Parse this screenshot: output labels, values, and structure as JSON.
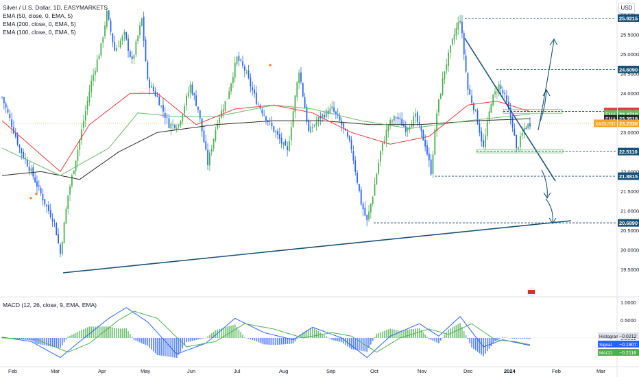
{
  "header": {
    "title": "Silver / U.S. Dollar, 1D, EASYMARKETS",
    "indicators": [
      "EMA (50, close, 0, EMA, 5)",
      "EMA (200, close, 0, EMA, 5)",
      "EMA (100, close, 0, EMA, 5)"
    ],
    "currency": "USD",
    "macd_title": "MACD (12, 26, close, 9, EMA, EMA)"
  },
  "colors": {
    "up": "#4caf50",
    "down": "#2962ff",
    "ema50": "#e53935",
    "ema100": "#66bb6a",
    "ema200": "#2a2a2a",
    "trendline": "#1a5276",
    "current_price": "#f5a623",
    "macd_line": "#2962ff",
    "signal_line": "#4caf50"
  },
  "chart_data": [
    {
      "type": "candlestick",
      "symbol": "XAGUSD",
      "x_ticks": [
        "Feb",
        "Mar",
        "Apr",
        "May",
        "Jun",
        "Jul",
        "Aug",
        "Sep",
        "Oct",
        "Nov",
        "Dec",
        "2024",
        "Feb",
        "Mar"
      ],
      "y_ticks": [
        "26.0000",
        "25.5000",
        "25.0000",
        "24.5000",
        "24.0000",
        "23.5000",
        "23.0000",
        "22.5000",
        "22.0000",
        "21.5000",
        "21.0000",
        "20.5000",
        "20.0000",
        "19.5000"
      ],
      "ylim": [
        19.3,
        26.3
      ],
      "key_path": [
        [
          0,
          23.9
        ],
        [
          5,
          23.2
        ],
        [
          9,
          22.6
        ],
        [
          15,
          22.0
        ],
        [
          22,
          21.2
        ],
        [
          27,
          20.7
        ],
        [
          30,
          19.9
        ],
        [
          34,
          21.4
        ],
        [
          40,
          22.8
        ],
        [
          46,
          24.3
        ],
        [
          51,
          25.2
        ],
        [
          54,
          26.05
        ],
        [
          58,
          25.1
        ],
        [
          63,
          25.5
        ],
        [
          67,
          24.8
        ],
        [
          72,
          25.9
        ],
        [
          75,
          24.3
        ],
        [
          80,
          23.9
        ],
        [
          86,
          23.2
        ],
        [
          91,
          23.2
        ],
        [
          97,
          24.2
        ],
        [
          101,
          23.6
        ],
        [
          106,
          22.2
        ],
        [
          111,
          23.3
        ],
        [
          116,
          23.9
        ],
        [
          121,
          24.9
        ],
        [
          125,
          24.6
        ],
        [
          131,
          23.8
        ],
        [
          137,
          23.3
        ],
        [
          142,
          22.9
        ],
        [
          147,
          22.5
        ],
        [
          153,
          24.6
        ],
        [
          158,
          23.0
        ],
        [
          164,
          23.4
        ],
        [
          170,
          23.6
        ],
        [
          175,
          23.2
        ],
        [
          180,
          22.6
        ],
        [
          185,
          21.2
        ],
        [
          188,
          20.72
        ],
        [
          191,
          21.4
        ],
        [
          195,
          22.5
        ],
        [
          199,
          23.2
        ],
        [
          203,
          23.4
        ],
        [
          208,
          23.1
        ],
        [
          213,
          23.4
        ],
        [
          218,
          22.7
        ],
        [
          221,
          22.0
        ],
        [
          224,
          23.5
        ],
        [
          228,
          24.6
        ],
        [
          233,
          25.5
        ],
        [
          236,
          25.92
        ],
        [
          240,
          24.1
        ],
        [
          244,
          23.5
        ],
        [
          248,
          22.6
        ],
        [
          252,
          23.8
        ],
        [
          256,
          24.2
        ],
        [
          259,
          23.9
        ],
        [
          263,
          23.2
        ],
        [
          265,
          22.55
        ],
        [
          269,
          23.1
        ],
        [
          272,
          23.233
        ]
      ],
      "ema50_path": [
        [
          0,
          23.3
        ],
        [
          30,
          22.0
        ],
        [
          45,
          23.2
        ],
        [
          66,
          24.0
        ],
        [
          80,
          24.0
        ],
        [
          100,
          23.2
        ],
        [
          120,
          23.6
        ],
        [
          140,
          23.7
        ],
        [
          160,
          23.5
        ],
        [
          180,
          23.0
        ],
        [
          200,
          22.7
        ],
        [
          220,
          22.9
        ],
        [
          240,
          23.7
        ],
        [
          255,
          23.8
        ],
        [
          272,
          23.5345
        ]
      ],
      "ema100_path": [
        [
          0,
          22.6
        ],
        [
          30,
          21.9
        ],
        [
          55,
          22.6
        ],
        [
          70,
          23.5
        ],
        [
          90,
          23.4
        ],
        [
          110,
          23.4
        ],
        [
          140,
          23.7
        ],
        [
          160,
          23.6
        ],
        [
          185,
          23.3
        ],
        [
          210,
          23.1
        ],
        [
          240,
          23.3
        ],
        [
          272,
          23.471
        ]
      ],
      "ema200_path": [
        [
          0,
          21.9
        ],
        [
          20,
          22.0
        ],
        [
          40,
          21.8
        ],
        [
          60,
          22.5
        ],
        [
          80,
          23.0
        ],
        [
          110,
          23.2
        ],
        [
          140,
          23.3
        ],
        [
          165,
          23.3
        ],
        [
          190,
          23.2
        ],
        [
          215,
          23.2
        ],
        [
          245,
          23.3
        ],
        [
          272,
          23.3518
        ]
      ],
      "current_price": 23.233,
      "price_labels": [
        {
          "value": 25.9215,
          "text": "25.9215",
          "kind": "level"
        },
        {
          "value": 24.609,
          "text": "24.6090",
          "kind": "level"
        },
        {
          "value": 23.5385,
          "text": "23.5385",
          "kind": "level"
        },
        {
          "value": 23.5345,
          "text": "23.5345",
          "tag": "EMA",
          "kind": "ema50"
        },
        {
          "value": 23.471,
          "text": "23.4710",
          "tag": "EMA",
          "kind": "ema100"
        },
        {
          "value": 23.3518,
          "text": "23.3518",
          "tag": "EMA",
          "kind": "ema200"
        },
        {
          "value": 23.233,
          "text": "23.2330",
          "tag": "XAGUSD",
          "kind": "price"
        },
        {
          "value": 22.511,
          "text": "22.5110",
          "kind": "level"
        },
        {
          "value": 21.8815,
          "text": "21.8815",
          "kind": "level"
        },
        {
          "value": 20.689,
          "text": "20.6890",
          "kind": "level"
        }
      ]
    },
    {
      "type": "macd",
      "y_ticks": [
        "1.0000",
        "0.5000",
        "0.0000"
      ],
      "ylim": [
        -0.95,
        1.05
      ],
      "macd_path": [
        [
          0,
          0.02
        ],
        [
          15,
          -0.1
        ],
        [
          30,
          -0.55
        ],
        [
          40,
          -0.1
        ],
        [
          55,
          0.55
        ],
        [
          64,
          0.85
        ],
        [
          75,
          0.45
        ],
        [
          90,
          -0.45
        ],
        [
          105,
          -0.15
        ],
        [
          120,
          0.55
        ],
        [
          135,
          0.15
        ],
        [
          150,
          -0.05
        ],
        [
          160,
          0.3
        ],
        [
          175,
          0.0
        ],
        [
          188,
          -0.55
        ],
        [
          200,
          0.05
        ],
        [
          215,
          0.4
        ],
        [
          225,
          0.05
        ],
        [
          236,
          0.6
        ],
        [
          248,
          -0.25
        ],
        [
          258,
          -0.05
        ],
        [
          272,
          -0.2118
        ]
      ],
      "signal_path": [
        [
          0,
          0.0
        ],
        [
          18,
          -0.05
        ],
        [
          34,
          -0.4
        ],
        [
          45,
          -0.15
        ],
        [
          60,
          0.5
        ],
        [
          68,
          0.75
        ],
        [
          80,
          0.55
        ],
        [
          95,
          -0.25
        ],
        [
          110,
          -0.1
        ],
        [
          125,
          0.4
        ],
        [
          140,
          0.25
        ],
        [
          155,
          0.0
        ],
        [
          170,
          0.15
        ],
        [
          180,
          0.05
        ],
        [
          193,
          -0.4
        ],
        [
          205,
          0.0
        ],
        [
          220,
          0.25
        ],
        [
          230,
          0.1
        ],
        [
          242,
          0.4
        ],
        [
          254,
          -0.05
        ],
        [
          264,
          -0.1
        ],
        [
          272,
          -0.1907
        ]
      ],
      "labels": [
        {
          "name": "Histogram",
          "text": "−0.0212",
          "value": -0.0212
        },
        {
          "name": "Signal",
          "text": "−0.1907",
          "value": -0.1907
        },
        {
          "name": "MACD",
          "text": "−0.2118",
          "value": -0.2118
        }
      ]
    }
  ]
}
